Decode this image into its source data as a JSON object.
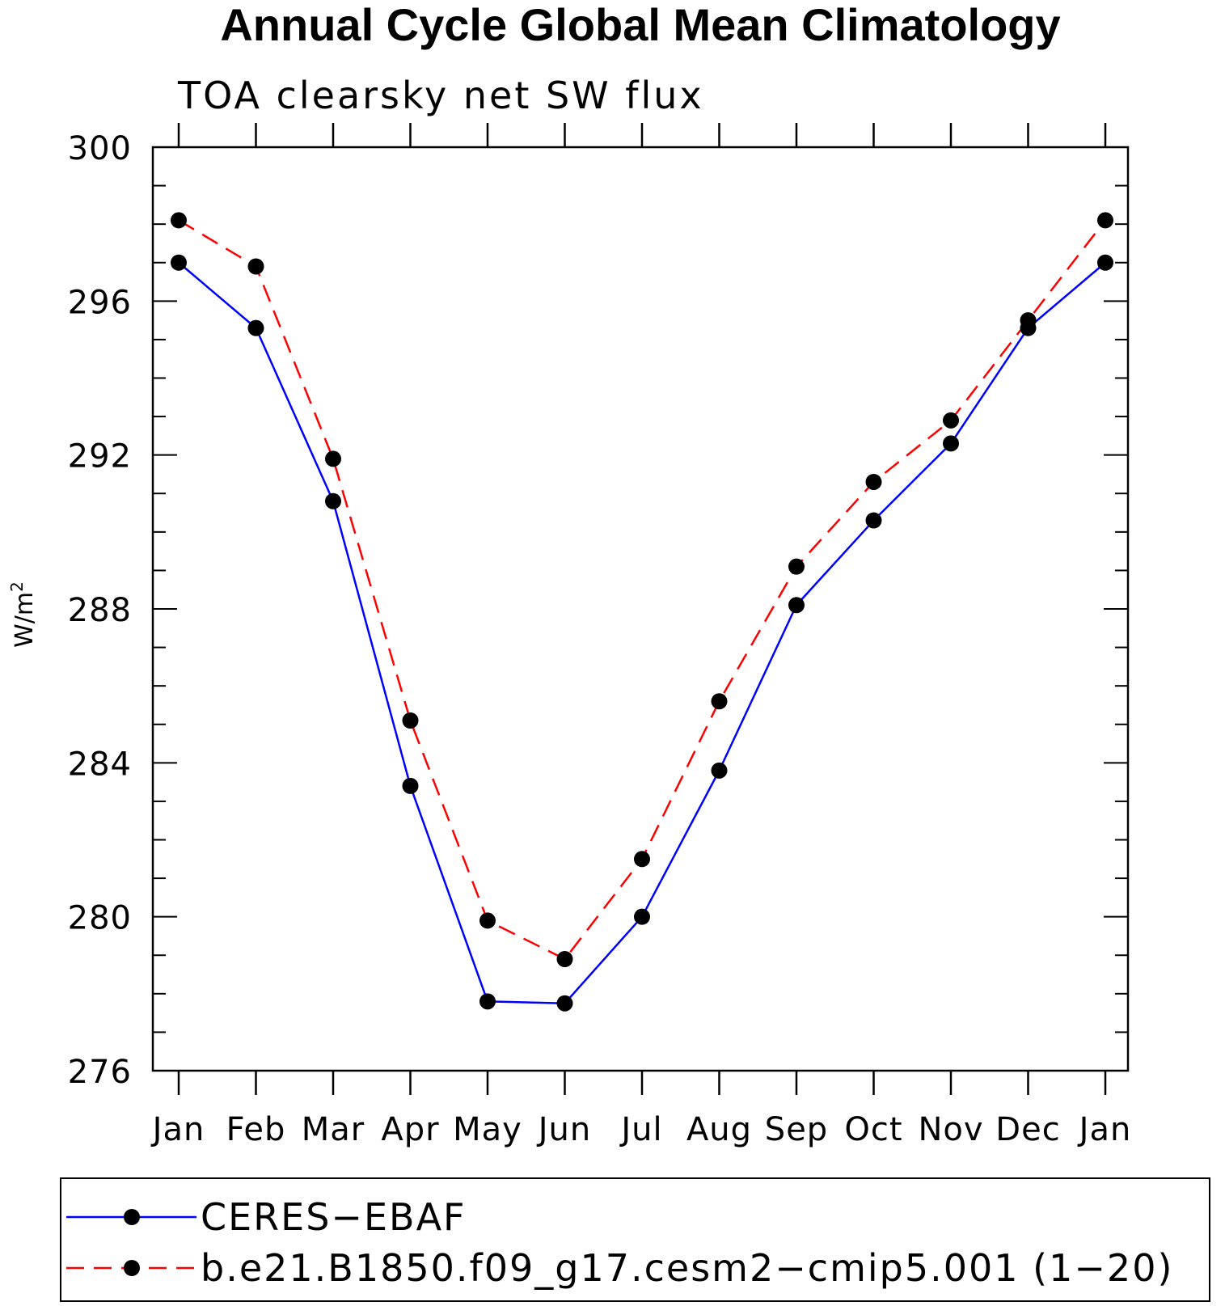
{
  "chart_data": {
    "type": "line",
    "title": "Annual Cycle Global Mean Climatology",
    "subtitle": "TOA clearsky net SW flux",
    "xlabel": "",
    "ylabel": "W/m",
    "ylabel_superscript": "2",
    "ylim": [
      276,
      300
    ],
    "y_major_ticks": [
      "276",
      "280",
      "284",
      "288",
      "292",
      "296",
      "300"
    ],
    "y_minor_step": 1,
    "categories": [
      "Jan",
      "Feb",
      "Mar",
      "Apr",
      "May",
      "Jun",
      "Jul",
      "Aug",
      "Sep",
      "Oct",
      "Nov",
      "Dec",
      "Jan"
    ],
    "series": [
      {
        "name": "CERES−EBAF",
        "color": "#0000ff",
        "dash": "solid",
        "marker": "filled-circle",
        "values": [
          297.0,
          295.3,
          290.8,
          283.4,
          277.8,
          277.75,
          280.0,
          283.8,
          288.1,
          290.3,
          292.3,
          295.3,
          297.0
        ]
      },
      {
        "name": "b.e21.B1850.f09_g17.cesm2−cmip5.001 (1−20)",
        "color": "#ff0000",
        "dash": "dashed",
        "marker": "filled-circle",
        "values": [
          298.1,
          296.9,
          291.9,
          285.1,
          279.9,
          278.9,
          281.5,
          285.6,
          289.1,
          291.3,
          292.9,
          295.5,
          298.1
        ]
      }
    ],
    "legend_position": "bottom"
  }
}
